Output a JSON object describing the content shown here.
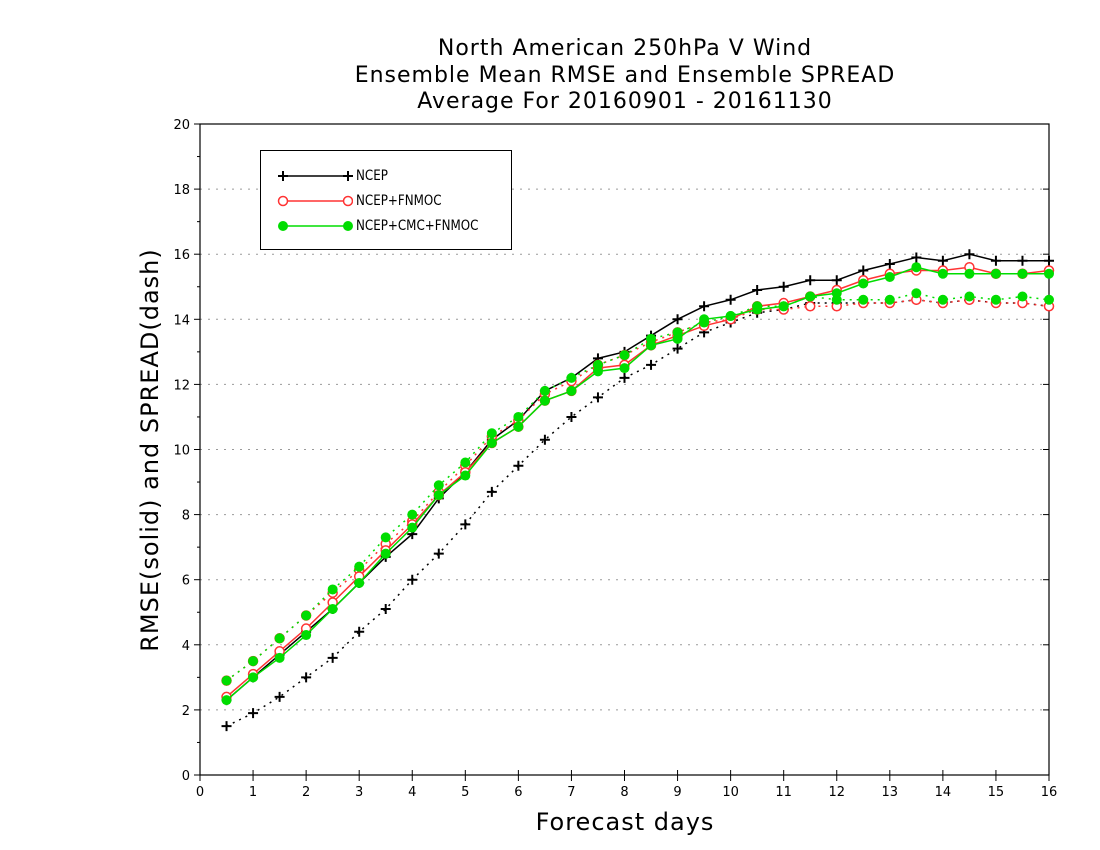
{
  "title_lines": [
    "North American 250hPa V Wind",
    "Ensemble Mean RMSE and Ensemble SPREAD",
    "Average For 20160901 - 20161130"
  ],
  "chart_data": {
    "type": "line",
    "xlabel": "Forecast days",
    "ylabel": "RMSE(solid) and SPREAD(dash)",
    "xlim": [
      0,
      16
    ],
    "ylim": [
      0,
      20
    ],
    "xticks": [
      0,
      1,
      2,
      3,
      4,
      5,
      6,
      7,
      8,
      9,
      10,
      11,
      12,
      13,
      14,
      15,
      16
    ],
    "yticks": [
      0,
      2,
      4,
      6,
      8,
      10,
      12,
      14,
      16,
      18,
      20
    ],
    "grid": "horizontal dotted",
    "legend_position": "top-left",
    "x": [
      0.5,
      1,
      1.5,
      2,
      2.5,
      3,
      3.5,
      4,
      4.5,
      5,
      5.5,
      6,
      6.5,
      7,
      7.5,
      8,
      8.5,
      9,
      9.5,
      10,
      10.5,
      11,
      11.5,
      12,
      12.5,
      13,
      13.5,
      14,
      14.5,
      15,
      15.5,
      16
    ],
    "series": [
      {
        "name": "NCEP",
        "color": "#000000",
        "marker": "plus",
        "rmse": [
          2.3,
          3.0,
          3.7,
          4.4,
          5.1,
          5.9,
          6.7,
          7.4,
          8.5,
          9.3,
          10.3,
          10.9,
          11.8,
          12.2,
          12.8,
          13.0,
          13.5,
          14.0,
          14.4,
          14.6,
          14.9,
          15.0,
          15.2,
          15.2,
          15.5,
          15.7,
          15.9,
          15.8,
          16.0,
          15.8,
          15.8,
          15.8
        ],
        "spread": [
          1.5,
          1.9,
          2.4,
          3.0,
          3.6,
          4.4,
          5.1,
          6.0,
          6.8,
          7.7,
          8.7,
          9.5,
          10.3,
          11.0,
          11.6,
          12.2,
          12.6,
          13.1,
          13.6,
          13.9,
          14.2,
          14.3,
          14.5,
          14.5,
          14.5,
          14.5,
          14.6,
          14.5,
          14.6,
          14.5,
          14.5,
          14.4
        ]
      },
      {
        "name": "NCEP+FNMOC",
        "color": "#ff3333",
        "marker": "open-circle",
        "rmse": [
          2.4,
          3.1,
          3.8,
          4.5,
          5.3,
          6.1,
          6.9,
          7.7,
          8.6,
          9.3,
          10.2,
          10.7,
          11.5,
          11.8,
          12.5,
          12.6,
          13.2,
          13.5,
          13.8,
          14.0,
          14.4,
          14.5,
          14.7,
          14.9,
          15.2,
          15.4,
          15.5,
          15.5,
          15.6,
          15.4,
          15.4,
          15.5
        ],
        "spread": [
          2.9,
          3.5,
          4.2,
          4.9,
          5.6,
          6.3,
          7.1,
          7.8,
          8.7,
          9.5,
          10.4,
          10.9,
          11.7,
          12.1,
          12.6,
          12.9,
          13.3,
          13.6,
          13.9,
          14.0,
          14.3,
          14.3,
          14.4,
          14.4,
          14.5,
          14.5,
          14.6,
          14.5,
          14.6,
          14.5,
          14.5,
          14.4
        ]
      },
      {
        "name": "NCEP+CMC+FNMOC",
        "color": "#00dd00",
        "marker": "filled-circle",
        "rmse": [
          2.3,
          3.0,
          3.6,
          4.3,
          5.1,
          5.9,
          6.8,
          7.6,
          8.6,
          9.2,
          10.2,
          10.7,
          11.5,
          11.8,
          12.4,
          12.5,
          13.2,
          13.4,
          14.0,
          14.1,
          14.3,
          14.4,
          14.7,
          14.8,
          15.1,
          15.3,
          15.6,
          15.4,
          15.4,
          15.4,
          15.4,
          15.4
        ],
        "spread": [
          2.9,
          3.5,
          4.2,
          4.9,
          5.7,
          6.4,
          7.3,
          8.0,
          8.9,
          9.6,
          10.5,
          11.0,
          11.8,
          12.2,
          12.6,
          12.9,
          13.4,
          13.6,
          13.9,
          14.1,
          14.4,
          14.4,
          14.7,
          14.6,
          14.6,
          14.6,
          14.8,
          14.6,
          14.7,
          14.6,
          14.7,
          14.6
        ]
      }
    ]
  }
}
